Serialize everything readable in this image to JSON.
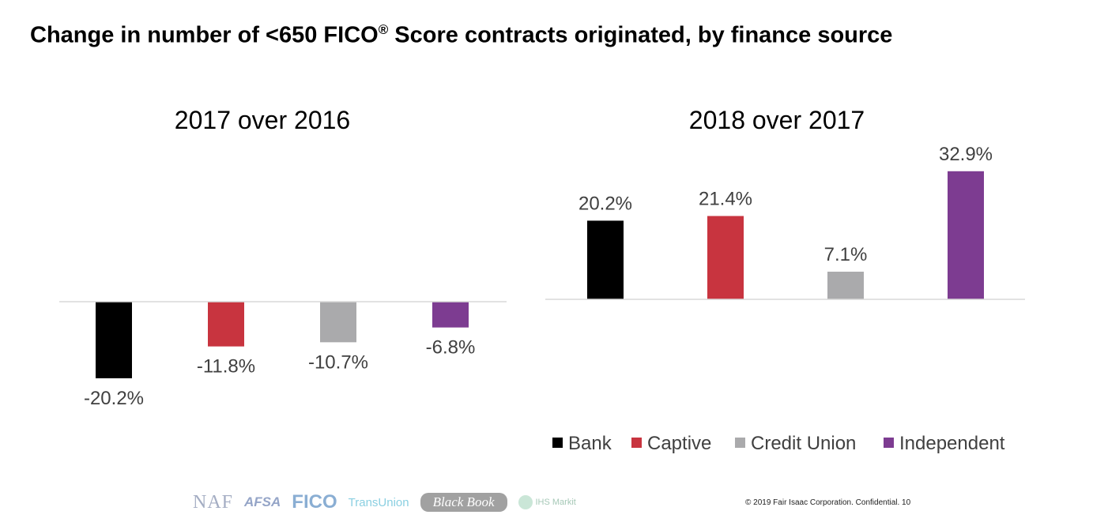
{
  "title": {
    "text": "Change in number of <650 FICO",
    "sup": "®",
    "suffix": " Score contracts originated, by finance source"
  },
  "colors": {
    "Bank": "#000000",
    "Captive": "#C8343F",
    "Credit Union": "#AAAAAC",
    "Independent": "#7D3C91",
    "label": "#404040",
    "axis": "#D9D9D9"
  },
  "chart_data": [
    {
      "type": "bar",
      "title": "2017 over 2016",
      "categories": [
        "Bank",
        "Captive",
        "Credit Union",
        "Independent"
      ],
      "values": [
        -20.2,
        -11.8,
        -10.7,
        -6.8
      ],
      "data_labels": [
        "-20.2%",
        "-11.8%",
        "-10.7%",
        "-6.8%"
      ],
      "grid": false
    },
    {
      "type": "bar",
      "title": "2018 over 2017",
      "categories": [
        "Bank",
        "Captive",
        "Credit Union",
        "Independent"
      ],
      "values": [
        20.2,
        21.4,
        7.1,
        32.9
      ],
      "data_labels": [
        "20.2%",
        "21.4%",
        "7.1%",
        "32.9%"
      ],
      "grid": false
    }
  ],
  "legend": {
    "placement": "bottom-right",
    "items": [
      "Bank",
      "Captive",
      "Credit Union",
      "Independent"
    ]
  },
  "footer": {
    "logos": [
      "NAF",
      "AFSA",
      "FICO",
      "TransUnion",
      "Black Book",
      "IHS Markit"
    ],
    "copyright": "© 2019 Fair Isaac Corporation. Confidential.  10"
  }
}
